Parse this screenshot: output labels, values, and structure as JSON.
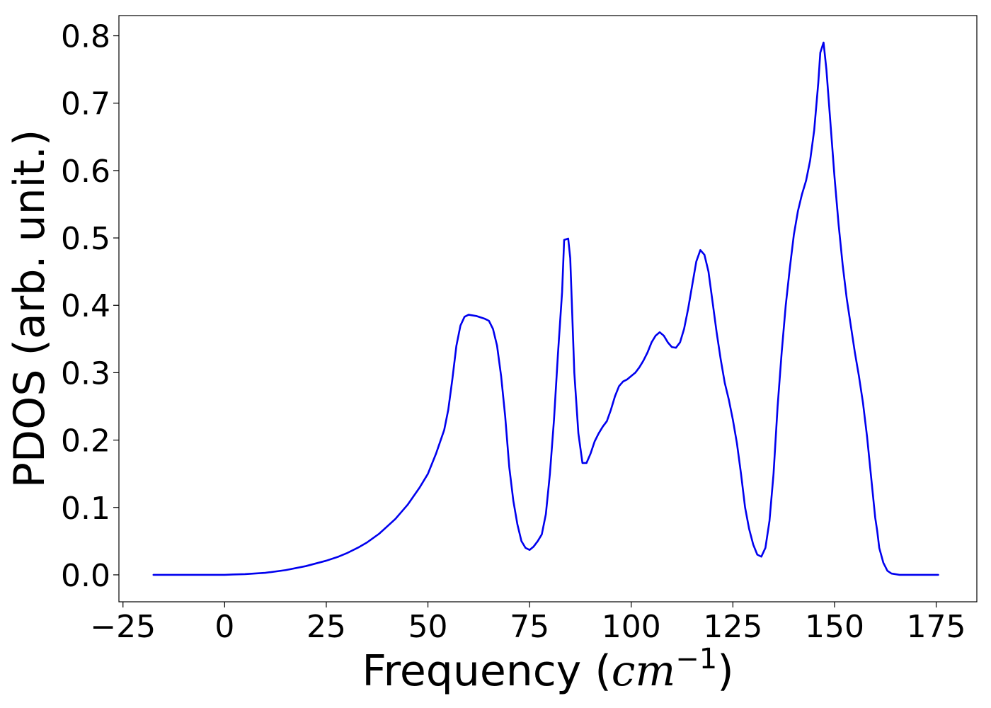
{
  "chart_data": {
    "type": "line",
    "title": "",
    "xlabel_prefix": "Frequency (",
    "xlabel_math": "cm",
    "xlabel_sup": "−1",
    "xlabel_suffix": ")",
    "ylabel": "PDOS (arb. unit.)",
    "xlim": [
      -26,
      185
    ],
    "ylim": [
      -0.04,
      0.83
    ],
    "xticks": [
      -25,
      0,
      25,
      50,
      75,
      100,
      125,
      150,
      175
    ],
    "xtick_labels": [
      "−25",
      "0",
      "25",
      "50",
      "75",
      "100",
      "125",
      "150",
      "175"
    ],
    "yticks": [
      0.0,
      0.1,
      0.2,
      0.3,
      0.4,
      0.5,
      0.6,
      0.7,
      0.8
    ],
    "ytick_labels": [
      "0.0",
      "0.1",
      "0.2",
      "0.3",
      "0.4",
      "0.5",
      "0.6",
      "0.7",
      "0.8"
    ],
    "grid": false,
    "line_color": "#0000ee",
    "series": [
      {
        "points": [
          [
            -17.5,
            0.0
          ],
          [
            -10,
            0.0
          ],
          [
            0,
            0.0
          ],
          [
            2,
            0.0005
          ],
          [
            5,
            0.001
          ],
          [
            10,
            0.003
          ],
          [
            15,
            0.007
          ],
          [
            20,
            0.013
          ],
          [
            25,
            0.021
          ],
          [
            28,
            0.027
          ],
          [
            30,
            0.032
          ],
          [
            33,
            0.041
          ],
          [
            35,
            0.048
          ],
          [
            38,
            0.061
          ],
          [
            40,
            0.072
          ],
          [
            42,
            0.083
          ],
          [
            45,
            0.104
          ],
          [
            48,
            0.13
          ],
          [
            50,
            0.15
          ],
          [
            52,
            0.18
          ],
          [
            54,
            0.215
          ],
          [
            55,
            0.245
          ],
          [
            56,
            0.29
          ],
          [
            57,
            0.34
          ],
          [
            58,
            0.37
          ],
          [
            59,
            0.383
          ],
          [
            60,
            0.386
          ],
          [
            62,
            0.384
          ],
          [
            64,
            0.38
          ],
          [
            65,
            0.377
          ],
          [
            66,
            0.365
          ],
          [
            67,
            0.34
          ],
          [
            68,
            0.295
          ],
          [
            69,
            0.235
          ],
          [
            70,
            0.16
          ],
          [
            71,
            0.11
          ],
          [
            72,
            0.075
          ],
          [
            73,
            0.05
          ],
          [
            74,
            0.04
          ],
          [
            75,
            0.037
          ],
          [
            76,
            0.042
          ],
          [
            77,
            0.05
          ],
          [
            78,
            0.06
          ],
          [
            79,
            0.09
          ],
          [
            80,
            0.15
          ],
          [
            81,
            0.23
          ],
          [
            82,
            0.33
          ],
          [
            83,
            0.42
          ],
          [
            83.5,
            0.497
          ],
          [
            84.5,
            0.499
          ],
          [
            85,
            0.47
          ],
          [
            86,
            0.3
          ],
          [
            87,
            0.21
          ],
          [
            88,
            0.166
          ],
          [
            89,
            0.166
          ],
          [
            90,
            0.18
          ],
          [
            91,
            0.198
          ],
          [
            92,
            0.21
          ],
          [
            93,
            0.22
          ],
          [
            94,
            0.228
          ],
          [
            95,
            0.245
          ],
          [
            96,
            0.265
          ],
          [
            97,
            0.28
          ],
          [
            98,
            0.287
          ],
          [
            99,
            0.29
          ],
          [
            100,
            0.295
          ],
          [
            101,
            0.3
          ],
          [
            102,
            0.308
          ],
          [
            103,
            0.318
          ],
          [
            104,
            0.33
          ],
          [
            105,
            0.345
          ],
          [
            106,
            0.355
          ],
          [
            107,
            0.36
          ],
          [
            108,
            0.355
          ],
          [
            109,
            0.345
          ],
          [
            110,
            0.338
          ],
          [
            111,
            0.337
          ],
          [
            112,
            0.345
          ],
          [
            113,
            0.365
          ],
          [
            114,
            0.395
          ],
          [
            115,
            0.43
          ],
          [
            116,
            0.465
          ],
          [
            117,
            0.482
          ],
          [
            118,
            0.475
          ],
          [
            119,
            0.45
          ],
          [
            120,
            0.405
          ],
          [
            121,
            0.36
          ],
          [
            122,
            0.32
          ],
          [
            123,
            0.285
          ],
          [
            124,
            0.26
          ],
          [
            125,
            0.23
          ],
          [
            126,
            0.195
          ],
          [
            127,
            0.15
          ],
          [
            128,
            0.1
          ],
          [
            129,
            0.068
          ],
          [
            130,
            0.045
          ],
          [
            131,
            0.03
          ],
          [
            132,
            0.027
          ],
          [
            133,
            0.04
          ],
          [
            134,
            0.08
          ],
          [
            135,
            0.15
          ],
          [
            136,
            0.25
          ],
          [
            137,
            0.33
          ],
          [
            138,
            0.4
          ],
          [
            139,
            0.455
          ],
          [
            140,
            0.505
          ],
          [
            141,
            0.54
          ],
          [
            142,
            0.565
          ],
          [
            143,
            0.585
          ],
          [
            144,
            0.615
          ],
          [
            145,
            0.66
          ],
          [
            146,
            0.73
          ],
          [
            146.5,
            0.775
          ],
          [
            147.3,
            0.79
          ],
          [
            148,
            0.75
          ],
          [
            149,
            0.67
          ],
          [
            150,
            0.59
          ],
          [
            151,
            0.52
          ],
          [
            152,
            0.46
          ],
          [
            153,
            0.41
          ],
          [
            154,
            0.37
          ],
          [
            155,
            0.33
          ],
          [
            156,
            0.295
          ],
          [
            157,
            0.255
          ],
          [
            158,
            0.205
          ],
          [
            159,
            0.145
          ],
          [
            160,
            0.085
          ],
          [
            160.5,
            0.065
          ],
          [
            161,
            0.04
          ],
          [
            162,
            0.018
          ],
          [
            163,
            0.006
          ],
          [
            164,
            0.002
          ],
          [
            166,
            0.0
          ],
          [
            170,
            0.0
          ],
          [
            175.5,
            0.0
          ]
        ]
      }
    ]
  }
}
